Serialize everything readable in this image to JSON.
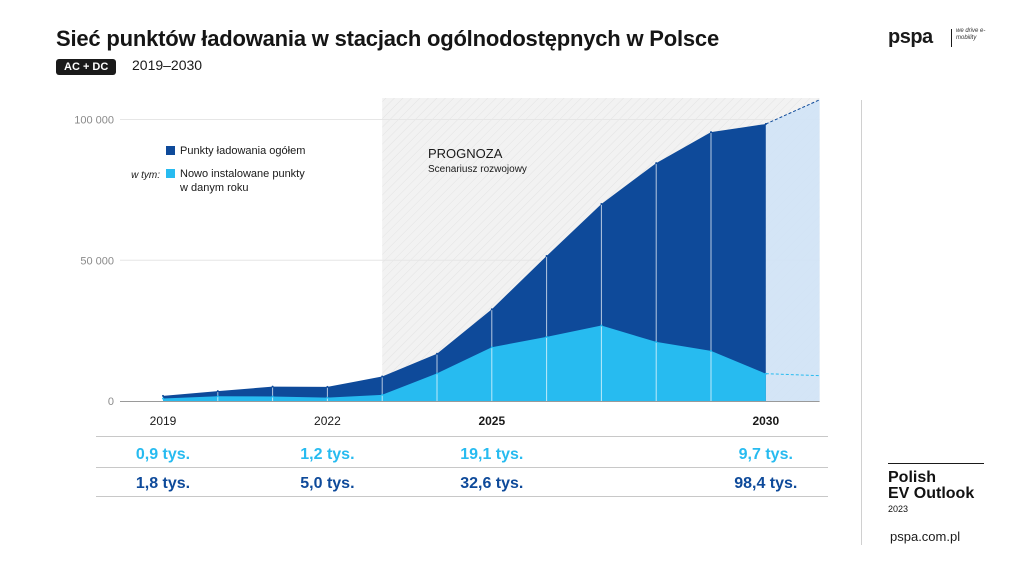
{
  "header": {
    "title": "Sieć punktów ładowania w stacjach ogólnodostępnych w Polsce",
    "badge": "AC + DC",
    "years": "2019–2030"
  },
  "logo": {
    "text": "pspa",
    "tagline": "we drive e-mobility"
  },
  "brand": {
    "line1": "Polish",
    "line2": "EV Outlook",
    "year": "2023",
    "site": "pspa.com.pl"
  },
  "colors": {
    "total": "#0e4a9a",
    "new": "#27bbf0",
    "forecast_band": "#f2f2f2",
    "value_new": "#27bbf0",
    "value_total": "#0e4a9a"
  },
  "chart_data": {
    "type": "area",
    "x": [
      2019,
      2020,
      2021,
      2022,
      2023,
      2024,
      2025,
      2026,
      2027,
      2028,
      2029,
      2030
    ],
    "series": [
      {
        "name": "Punkty ładowania ogółem",
        "values": [
          1800,
          3500,
          5100,
          5000,
          8700,
          16800,
          32600,
          51500,
          70000,
          84500,
          95500,
          98400
        ]
      },
      {
        "name": "Nowo instalowane punkty w danym roku",
        "values": [
          900,
          1700,
          1600,
          1200,
          2200,
          9800,
          19100,
          22800,
          26800,
          21000,
          17800,
          9700
        ]
      }
    ],
    "extension": {
      "x": 2031,
      "total": 107000,
      "new": 9000
    },
    "ylim": [
      0,
      107000
    ],
    "yticks": [
      {
        "value": 0,
        "label": "0"
      },
      {
        "value": 50000,
        "label": "50 000"
      },
      {
        "value": 100000,
        "label": "100 000"
      }
    ],
    "xticks": [
      {
        "value": 2019,
        "label": "2019",
        "bold": false
      },
      {
        "value": 2022,
        "label": "2022",
        "bold": false
      },
      {
        "value": 2025,
        "label": "2025",
        "bold": true
      },
      {
        "value": 2030,
        "label": "2030",
        "bold": true
      }
    ],
    "forecast": {
      "from": 2023,
      "title": "PROGNOZA",
      "subtitle": "Scenariusz rozwojowy"
    },
    "legend": {
      "prefix": "w tym:",
      "items": [
        {
          "lines": [
            "Punkty ładowania ogółem"
          ],
          "color": "#0e4a9a"
        },
        {
          "lines": [
            "Nowo instalowane punkty",
            "w danym roku"
          ],
          "color": "#27bbf0"
        }
      ]
    },
    "table": [
      {
        "year": 2019,
        "new": "0,9 tys.",
        "total": "1,8 tys."
      },
      {
        "year": 2022,
        "new": "1,2 tys.",
        "total": "5,0 tys."
      },
      {
        "year": 2025,
        "new": "19,1 tys.",
        "total": "32,6 tys."
      },
      {
        "year": 2030,
        "new": "9,7 tys.",
        "total": "98,4 tys."
      }
    ]
  }
}
